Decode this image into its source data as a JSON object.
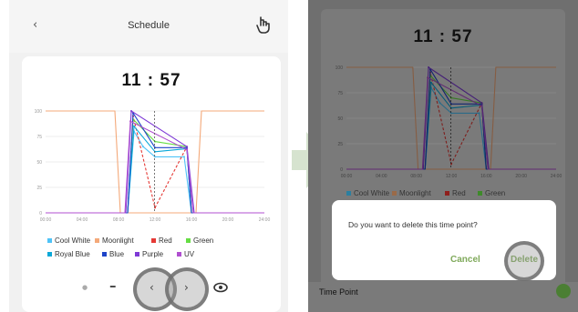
{
  "left": {
    "header": {
      "back_icon": "chevron-left",
      "title": "Schedule",
      "action_icon": "hand-pointer"
    },
    "time": "11 : 57",
    "chart_data": {
      "type": "line",
      "x_ticks": [
        "00:00",
        "04:00",
        "08:00",
        "12:00",
        "16:00",
        "20:00",
        "24:00"
      ],
      "y_ticks": [
        "0",
        "25",
        "50",
        "75",
        "100"
      ],
      "ylim": [
        0,
        100
      ],
      "series": [
        {
          "name": "Cool White",
          "color": "#4fc3f7",
          "x": [
            0,
            9.0,
            9.7,
            10.7,
            12,
            15.2,
            16.0,
            16.5,
            24
          ],
          "y": [
            0,
            0,
            80,
            65,
            55,
            55,
            0,
            0,
            0
          ]
        },
        {
          "name": "Moonlight",
          "color": "#f4a97a",
          "x": [
            0,
            7.6,
            8.2,
            16.5,
            17.1,
            24
          ],
          "y": [
            100,
            100,
            0,
            0,
            100,
            100
          ]
        },
        {
          "name": "Red",
          "color": "#e53935",
          "x": [
            0,
            9.0,
            9.6,
            12,
            15.5,
            16.0,
            24
          ],
          "y": [
            0,
            0,
            95,
            5,
            65,
            0,
            0
          ]
        },
        {
          "name": "Green",
          "color": "#66dd44",
          "x": [
            0,
            9.0,
            9.6,
            12,
            15.5,
            16.0,
            24
          ],
          "y": [
            0,
            0,
            92,
            70,
            65,
            0,
            0
          ]
        },
        {
          "name": "Royal Blue",
          "color": "#0aa8d8",
          "x": [
            0,
            9.0,
            9.7,
            12,
            15.5,
            16.0,
            24
          ],
          "y": [
            0,
            0,
            85,
            60,
            63,
            0,
            0
          ]
        },
        {
          "name": "Blue",
          "color": "#1e44c8",
          "x": [
            0,
            9.0,
            9.6,
            12,
            15.5,
            16.0,
            24
          ],
          "y": [
            0,
            0,
            98,
            64,
            64,
            0,
            0
          ]
        },
        {
          "name": "Purple",
          "color": "#7e3ad6",
          "x": [
            0,
            8.8,
            9.4,
            15.5,
            16.3,
            24
          ],
          "y": [
            0,
            0,
            100,
            65,
            0,
            0
          ]
        },
        {
          "name": "UV",
          "color": "#b04fd0",
          "x": [
            0,
            8.7,
            9.3,
            15.5,
            16.2,
            24
          ],
          "y": [
            0,
            0,
            90,
            62,
            0,
            0
          ]
        }
      ],
      "now_line_x": 11.95
    },
    "controls": {
      "dot_icon": "dot",
      "minus_label": "–",
      "prev_icon": "chevron-left",
      "next_icon": "chevron-right",
      "eye_icon": "eye-icon"
    }
  },
  "transition_arrow_color": "#d6e3cf",
  "right": {
    "time": "11 : 57",
    "dialog": {
      "message": "Do you want to delete this time point?",
      "cancel_label": "Cancel",
      "delete_label": "Delete"
    },
    "time_point_label": "Time Point"
  },
  "legend_cols": [
    [
      "Cool White",
      "Royal Blue"
    ],
    [
      "Moonlight",
      "Blue"
    ],
    [
      "Red",
      "Purple"
    ],
    [
      "Green",
      "UV"
    ]
  ],
  "accent": "#7fa95a",
  "highlight_color": "#8a8a8a"
}
